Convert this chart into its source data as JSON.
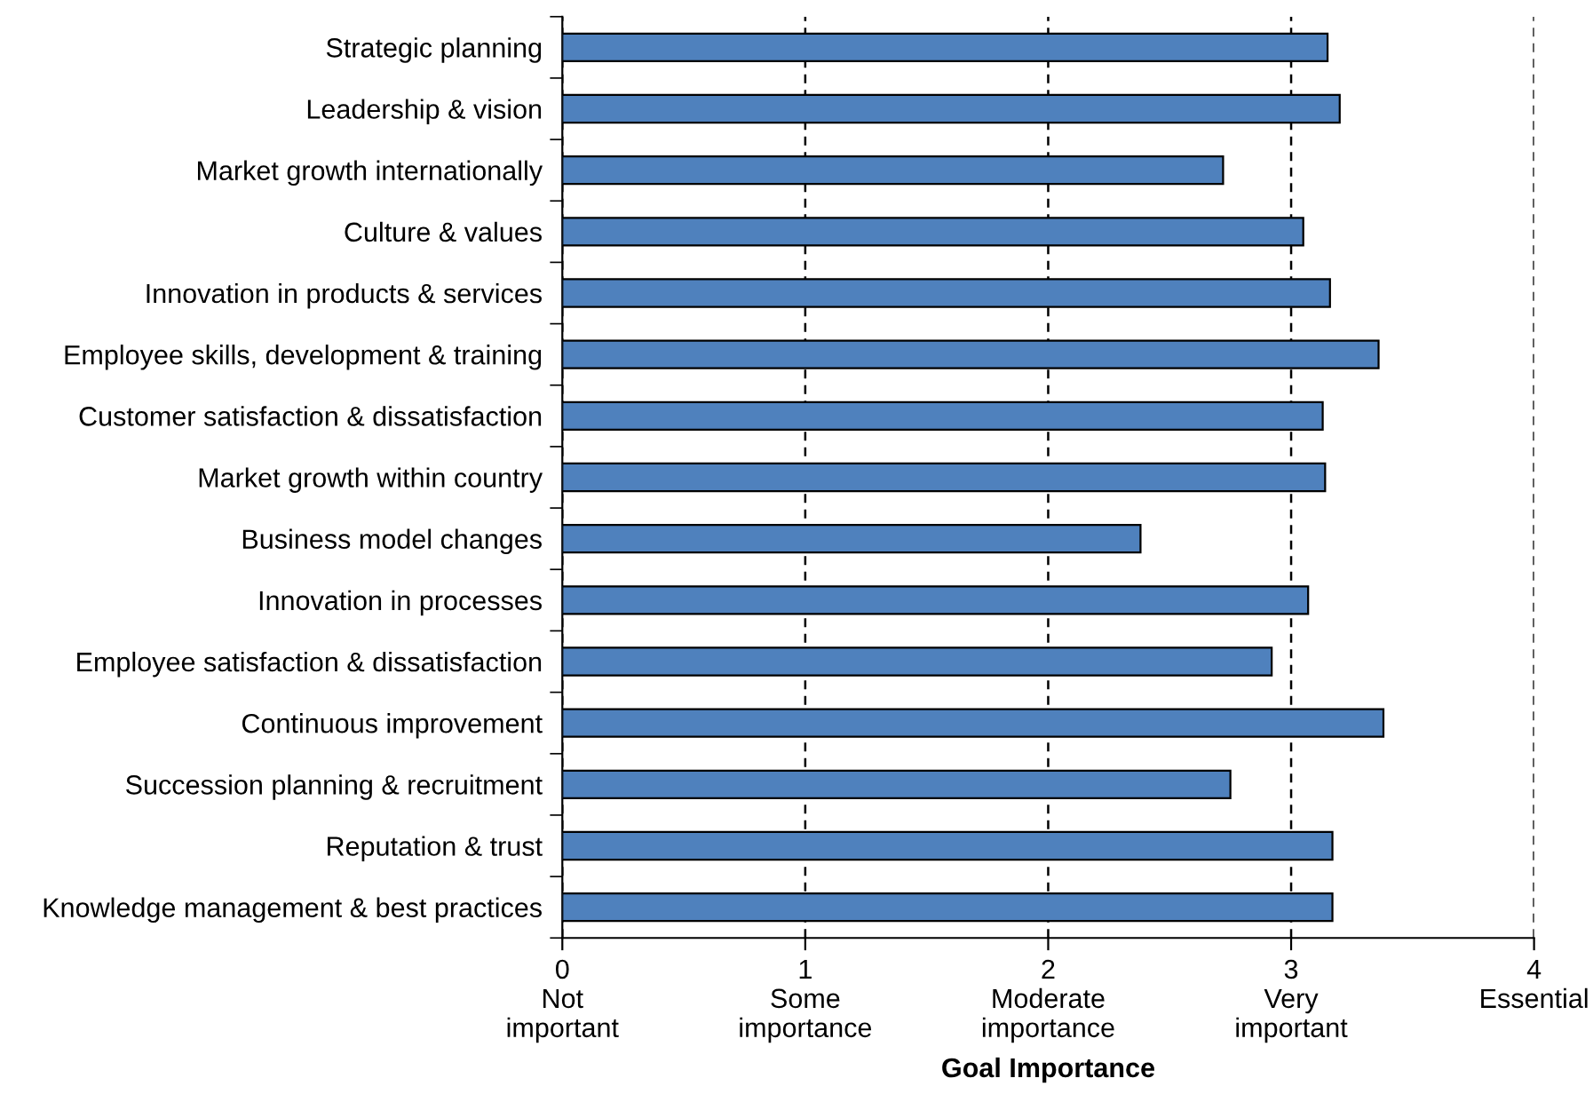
{
  "chart_data": {
    "type": "bar",
    "orientation": "horizontal",
    "xlabel": "Goal Importance",
    "categories": [
      "Strategic planning",
      "Leadership & vision",
      "Market growth internationally",
      "Culture & values",
      "Innovation in products & services",
      "Employee skills, development & training",
      "Customer satisfaction & dissatisfaction",
      "Market growth within country",
      "Business model changes",
      "Innovation in processes",
      "Employee satisfaction & dissatisfaction",
      "Continuous improvement",
      "Succession planning & recruitment",
      "Reputation & trust",
      "Knowledge management & best practices"
    ],
    "values": [
      3.15,
      3.2,
      2.72,
      3.05,
      3.16,
      3.36,
      3.13,
      3.14,
      2.38,
      3.07,
      2.92,
      3.38,
      2.75,
      3.17,
      3.17
    ],
    "color": "#4f81bd",
    "xlim": [
      0,
      4
    ],
    "xticks": [
      {
        "value": 0,
        "label": "0\nNot\nimportant"
      },
      {
        "value": 1,
        "label": "1\nSome\nimportance"
      },
      {
        "value": 2,
        "label": "2\nModerate\nimportance"
      },
      {
        "value": 3,
        "label": "3\nVery\nimportant"
      },
      {
        "value": 4,
        "label": "4\nEssential"
      }
    ],
    "grid": "x",
    "line_style": "dashed"
  }
}
